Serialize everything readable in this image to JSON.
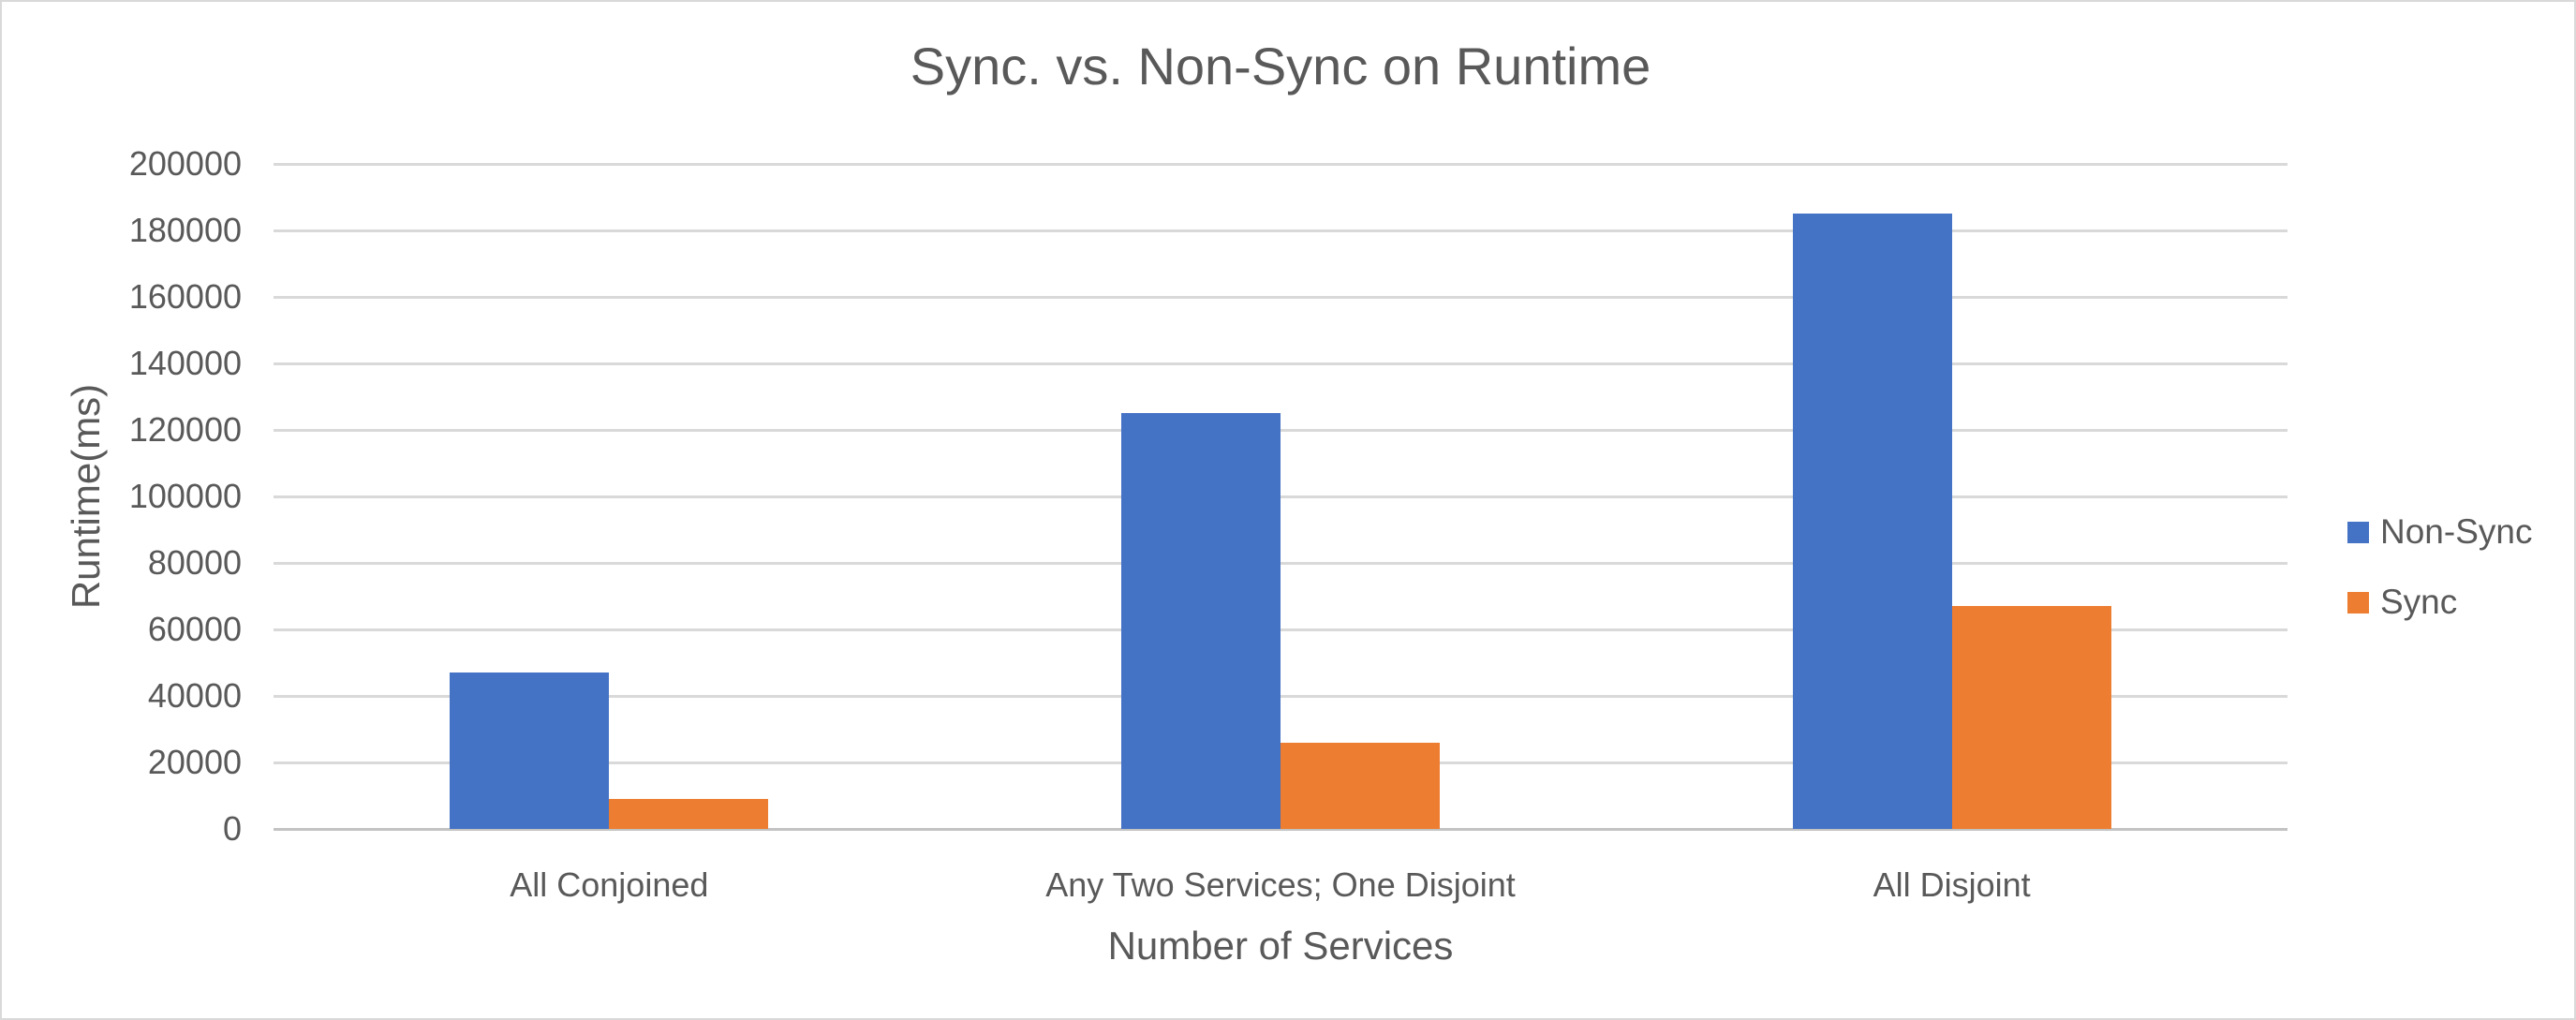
{
  "chart_data": {
    "type": "bar",
    "title": "Sync. vs. Non-Sync on Runtime",
    "xlabel": "Number of Services",
    "ylabel": "Runtime(ms)",
    "categories": [
      "All Conjoined",
      "Any Two Services; One Disjoint",
      "All Disjoint"
    ],
    "series": [
      {
        "name": "Non-Sync",
        "color": "#4472C4",
        "values": [
          47000,
          125000,
          185000
        ]
      },
      {
        "name": "Sync",
        "color": "#ED7D31",
        "values": [
          9000,
          26000,
          67000
        ]
      }
    ],
    "ylim": [
      0,
      200000
    ],
    "ytick_step": 20000,
    "ytick_labels": [
      "0",
      "20000",
      "40000",
      "60000",
      "80000",
      "100000",
      "120000",
      "140000",
      "160000",
      "180000",
      "200000"
    ],
    "grid": true,
    "legend_position": "right",
    "legend_entries": [
      "Non-Sync",
      "Sync"
    ]
  },
  "style": {
    "text_color": "#595959",
    "gridline_color": "#D9D9D9",
    "background_color": "#FFFFFF",
    "border_color": "#D9D9D9"
  }
}
